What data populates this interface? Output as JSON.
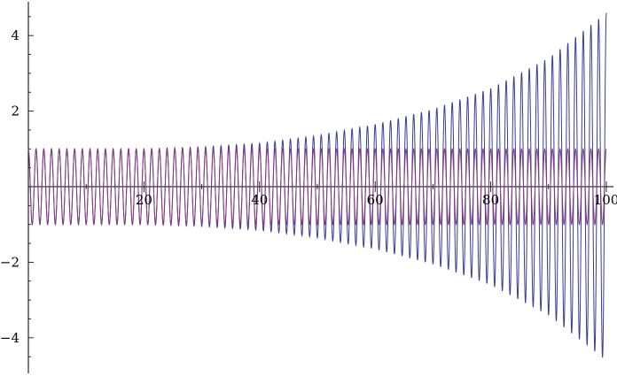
{
  "chart_data": {
    "type": "line",
    "title": "",
    "xlabel": "",
    "ylabel": "",
    "xlim": [
      0,
      100
    ],
    "ylim": [
      -4.8,
      4.8
    ],
    "x_ticks_major": [
      20,
      40,
      60,
      80,
      100
    ],
    "x_tick_labels": [
      "20",
      "40",
      "60",
      "80",
      "100"
    ],
    "x_ticks_minor": [
      5,
      10,
      15,
      25,
      30,
      35,
      45,
      50,
      55,
      65,
      70,
      75,
      85,
      90,
      95
    ],
    "y_ticks_major": [
      -4,
      -2,
      2,
      4
    ],
    "y_tick_labels": [
      "−4",
      "−2",
      "2",
      "4"
    ],
    "y_ticks_minor": [
      -4.5,
      -3.5,
      -3,
      -2.5,
      -1.5,
      -1,
      -0.5,
      0.5,
      1,
      1.5,
      2.5,
      3,
      3.5,
      4.5
    ],
    "grid": false,
    "legend": "none",
    "series": [
      {
        "color": "#3b3b9a",
        "x": [
          0,
          10,
          20,
          30,
          40,
          50,
          60,
          70,
          80,
          90,
          100
        ],
        "envelope": [
          1.0,
          1.0,
          1.0,
          1.05,
          1.15,
          1.35,
          1.65,
          2.05,
          2.6,
          3.4,
          4.6
        ],
        "cycles": 75,
        "shape": "sinusoid with growing amplitude"
      },
      {
        "color": "#8a3a7e",
        "x": [
          0,
          100
        ],
        "envelope": [
          1.0,
          1.0
        ],
        "cycles": 75,
        "shape": "sinusoid with constant amplitude 1"
      }
    ]
  }
}
